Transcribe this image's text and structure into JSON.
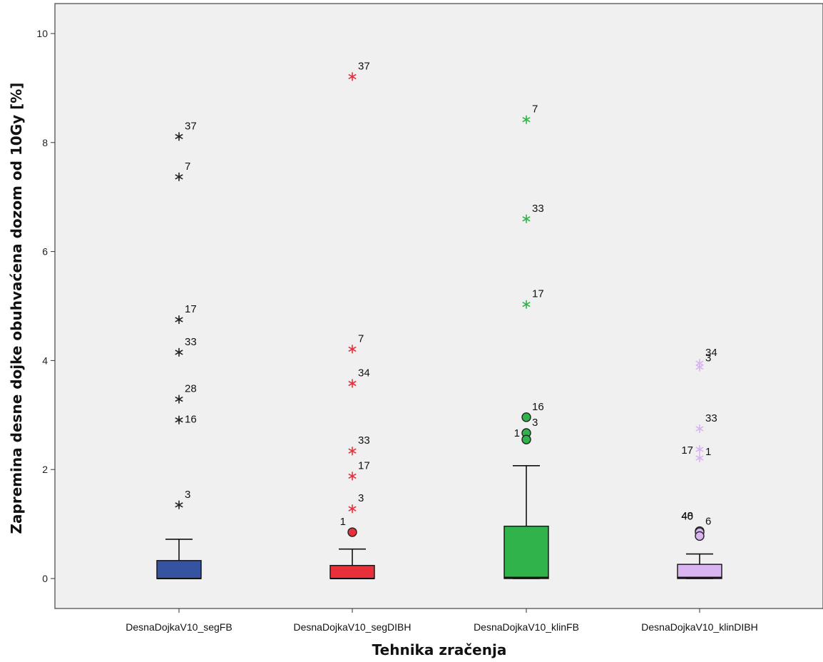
{
  "chart_data": {
    "type": "boxplot",
    "xlabel": "Tehnika zračenja",
    "ylabel": "Zapremina desne dojke obuhvaćena dozom od 10Gy [%]",
    "ylim": [
      -0.55,
      10.55
    ],
    "yticks": [
      0,
      2,
      4,
      6,
      8,
      10
    ],
    "grid": false,
    "categories": [
      "DesnaDojkaV10_segFB",
      "DesnaDojkaV10_segDIBH",
      "DesnaDojkaV10_klinFB",
      "DesnaDojkaV10_klinDIBH"
    ],
    "series": [
      {
        "color": "#3553a0",
        "median": 0.0,
        "q1": 0.0,
        "q3": 0.33,
        "whisker_low": 0.0,
        "whisker_high": 0.72,
        "outliers": [
          {
            "value": 8.11,
            "label": "37",
            "marker": "star"
          },
          {
            "value": 7.37,
            "label": "7",
            "marker": "star"
          },
          {
            "value": 4.75,
            "label": "17",
            "marker": "star"
          },
          {
            "value": 4.15,
            "label": "33",
            "marker": "star"
          },
          {
            "value": 3.29,
            "label": "28",
            "marker": "star"
          },
          {
            "value": 2.91,
            "label": "16",
            "marker": "star"
          },
          {
            "value": 1.35,
            "label": "3",
            "marker": "star"
          }
        ]
      },
      {
        "color": "#e8303a",
        "median": 0.0,
        "q1": 0.0,
        "q3": 0.24,
        "whisker_low": 0.0,
        "whisker_high": 0.54,
        "outliers": [
          {
            "value": 9.21,
            "label": "37",
            "marker": "star"
          },
          {
            "value": 4.21,
            "label": "7",
            "marker": "star"
          },
          {
            "value": 3.58,
            "label": "34",
            "marker": "star"
          },
          {
            "value": 2.34,
            "label": "33",
            "marker": "star"
          },
          {
            "value": 1.88,
            "label": "17",
            "marker": "star"
          },
          {
            "value": 1.28,
            "label": "3",
            "marker": "star"
          },
          {
            "value": 0.85,
            "label": "1",
            "marker": "circle"
          }
        ]
      },
      {
        "color": "#2fb34a",
        "median": 0.02,
        "q1": 0.0,
        "q3": 0.96,
        "whisker_low": 0.0,
        "whisker_high": 2.07,
        "outliers": [
          {
            "value": 8.42,
            "label": "7",
            "marker": "star"
          },
          {
            "value": 6.6,
            "label": "33",
            "marker": "star"
          },
          {
            "value": 5.03,
            "label": "17",
            "marker": "star"
          },
          {
            "value": 2.96,
            "label": "16",
            "marker": "circle"
          },
          {
            "value": 2.67,
            "label": "3",
            "marker": "circle"
          },
          {
            "value": 2.55,
            "label": "1",
            "marker": "circle"
          }
        ]
      },
      {
        "color": "#d8b4f0",
        "median": 0.02,
        "q1": 0.0,
        "q3": 0.26,
        "whisker_low": 0.0,
        "whisker_high": 0.45,
        "outliers": [
          {
            "value": 3.95,
            "label": "34",
            "marker": "star"
          },
          {
            "value": 3.88,
            "label": "3",
            "marker": "star"
          },
          {
            "value": 2.75,
            "label": "33",
            "marker": "star"
          },
          {
            "value": 2.37,
            "label": "1",
            "marker": "star"
          },
          {
            "value": 2.21,
            "label": "17",
            "marker": "star"
          },
          {
            "value": 0.87,
            "label": "40",
            "marker": "circle"
          },
          {
            "value": 0.85,
            "label": "48",
            "marker": "circle"
          },
          {
            "value": 0.78,
            "label": "6",
            "marker": "circle"
          }
        ]
      }
    ]
  }
}
